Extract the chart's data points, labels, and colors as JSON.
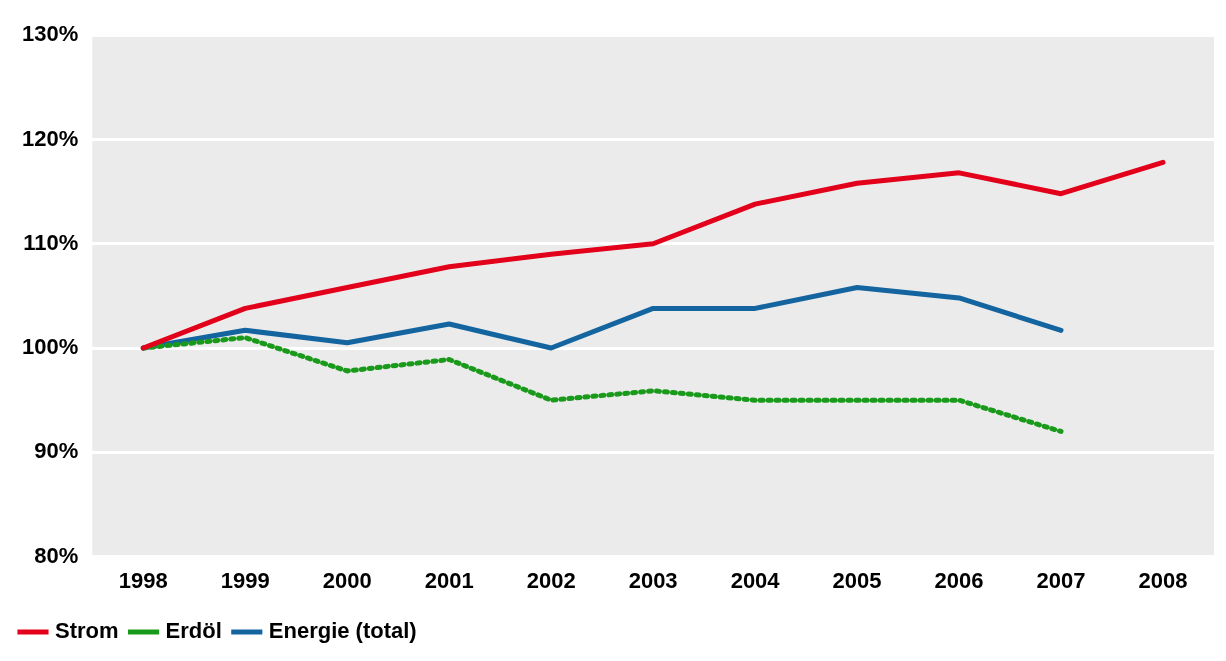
{
  "chart_data": {
    "type": "line",
    "categories": [
      "1998",
      "1999",
      "2000",
      "2001",
      "2002",
      "2003",
      "2004",
      "2005",
      "2006",
      "2007",
      "2008"
    ],
    "series": [
      {
        "name": "Strom",
        "color": "#e2001a",
        "values": [
          100,
          103.8,
          105.8,
          107.8,
          109,
          110,
          113.8,
          115.8,
          116.8,
          114.8,
          117.8
        ],
        "line_style": "solid"
      },
      {
        "name": "Erdöl",
        "color": "#1a9a1a",
        "values": [
          100,
          101,
          97.8,
          98.9,
          95,
          95.9,
          95,
          95,
          95,
          92,
          null
        ],
        "line_style": "dotted"
      },
      {
        "name": "Energie (total)",
        "color": "#1464a0",
        "values": [
          100,
          101.7,
          100.5,
          102.3,
          100,
          103.8,
          103.8,
          105.8,
          104.8,
          101.7,
          null
        ],
        "line_style": "solid"
      }
    ],
    "ylim": [
      80,
      130
    ],
    "yticks": [
      {
        "value": 80,
        "label": "80%"
      },
      {
        "value": 90,
        "label": "90%"
      },
      {
        "value": 100,
        "label": "100%"
      },
      {
        "value": 110,
        "label": "110%"
      },
      {
        "value": 120,
        "label": "120%"
      },
      {
        "value": 130,
        "label": "130%"
      }
    ],
    "grid": "y",
    "legend": "bottom left",
    "marker": "none"
  }
}
